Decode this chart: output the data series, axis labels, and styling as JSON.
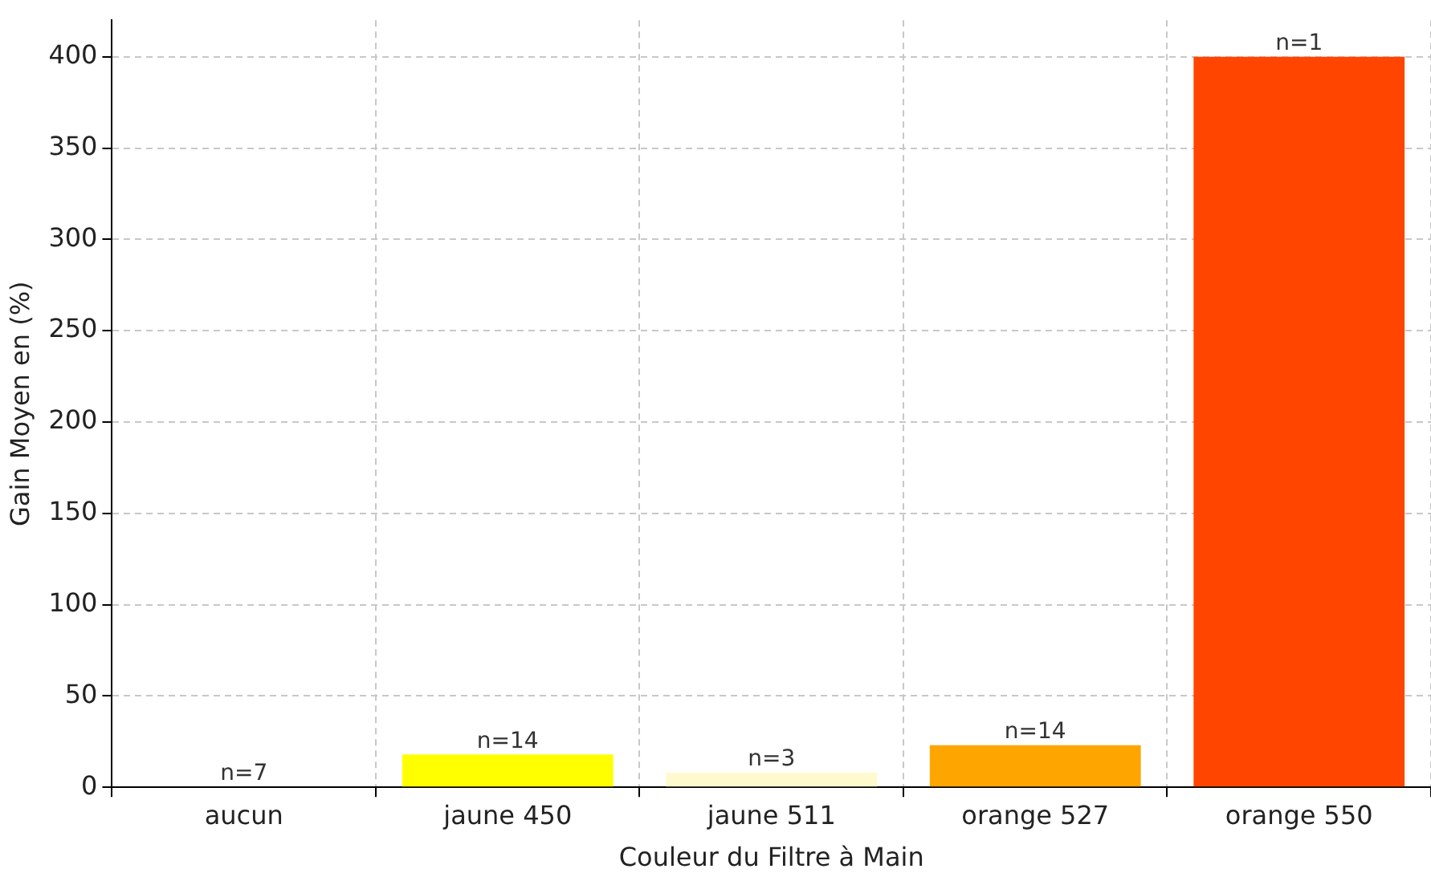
{
  "chart_data": {
    "type": "bar",
    "xlabel": "Couleur du Filtre à Main",
    "ylabel": "Gain Moyen en (%)",
    "categories": [
      "aucun",
      "jaune 450",
      "jaune 511",
      "orange 527",
      "orange 550"
    ],
    "values": [
      0,
      18,
      8,
      23,
      400
    ],
    "colors": [
      "#808080",
      "#ffff00",
      "#fffacd",
      "#ffa500",
      "#ff4500"
    ],
    "annotations": [
      {
        "text": "n=7",
        "x": "aucun",
        "y": 0
      },
      {
        "text": "n=14",
        "x": "jaune 450",
        "y": 18
      },
      {
        "text": "n=3",
        "x": "jaune 511",
        "y": 8
      },
      {
        "text": "n=14",
        "x": "orange 527",
        "y": 23
      },
      {
        "text": "n=1",
        "x": "orange 550",
        "y": 400
      }
    ],
    "ylim": [
      0,
      420
    ],
    "yticks": [
      0,
      50,
      100,
      150,
      200,
      250,
      300,
      350,
      400
    ],
    "grid": true
  }
}
